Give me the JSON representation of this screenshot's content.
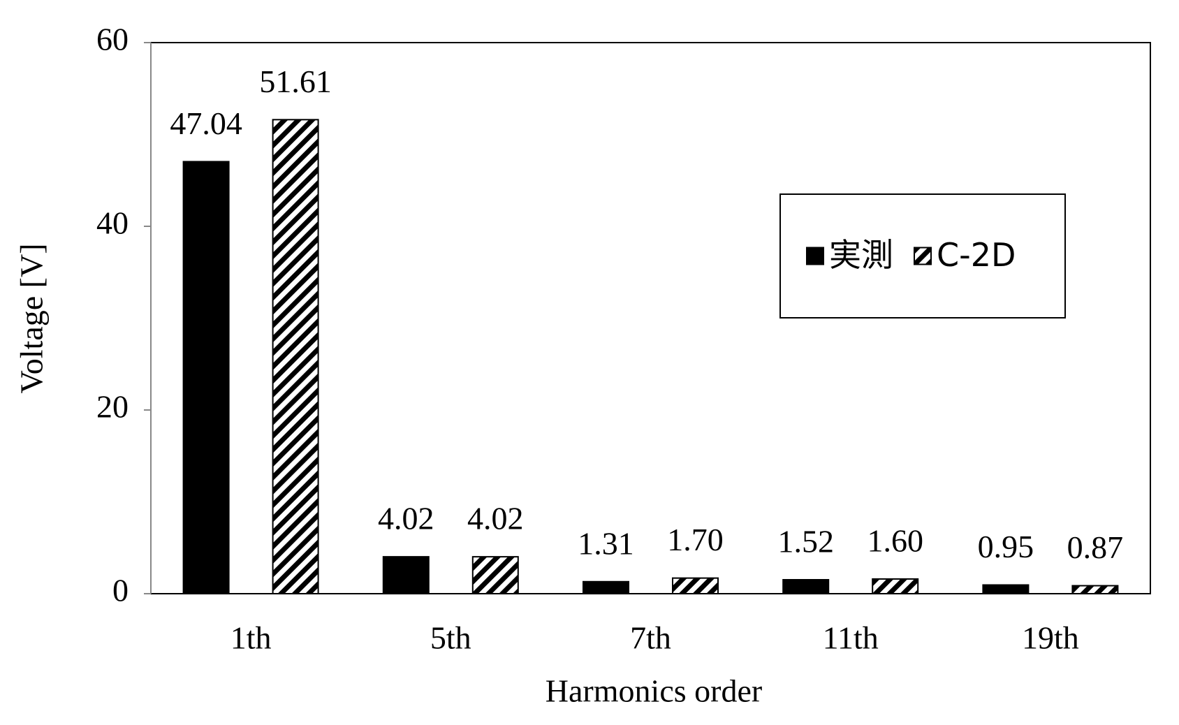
{
  "chart_data": {
    "type": "bar",
    "x_label": "Harmonics order",
    "y_label": "Voltage [V]",
    "categories": [
      "1th",
      "5th",
      "7th",
      "11th",
      "19th"
    ],
    "series": [
      {
        "name": "実測",
        "color": "#000000",
        "pattern": "solid",
        "values": [
          47.04,
          4.02,
          1.31,
          1.52,
          0.95
        ]
      },
      {
        "name": "C-2D",
        "color": "#000000",
        "pattern": "hatch",
        "values": [
          51.61,
          4.02,
          1.7,
          1.6,
          0.87
        ],
        "value_labels": [
          "51.61",
          "4.02",
          "1.70",
          "1.60",
          "0.87"
        ]
      }
    ],
    "ylim": [
      0,
      60
    ],
    "yticks": [
      0,
      20,
      40,
      60
    ],
    "grid": false,
    "legend": "right"
  }
}
